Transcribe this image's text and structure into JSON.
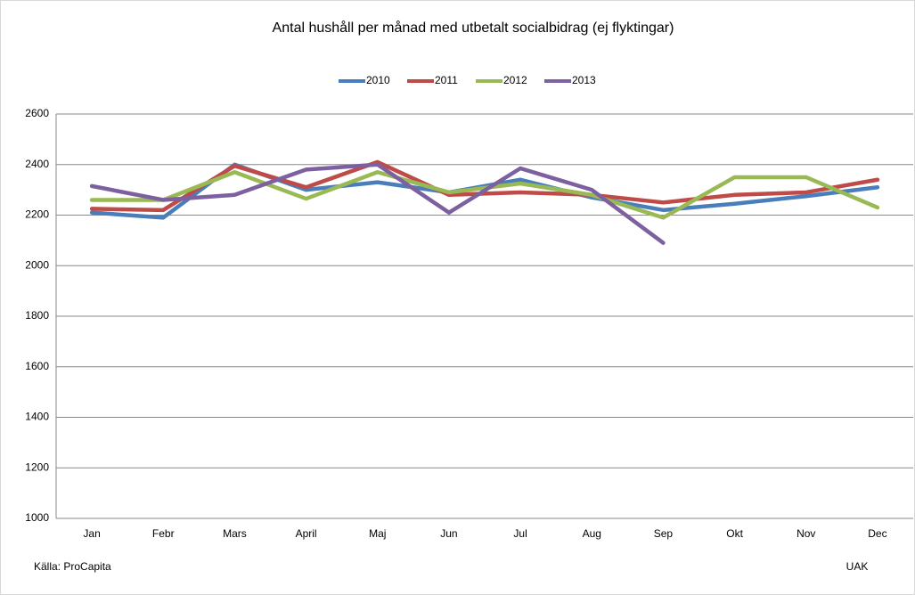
{
  "chart_data": {
    "type": "line",
    "title": "Antal hushåll per månad med utbetalt socialbidrag (ej flyktingar)",
    "categories": [
      "Jan",
      "Febr",
      "Mars",
      "April",
      "Maj",
      "Jun",
      "Jul",
      "Aug",
      "Sep",
      "Okt",
      "Nov",
      "Dec"
    ],
    "series": [
      {
        "name": "2010",
        "color": "#4a7ebb",
        "values": [
          2210,
          2190,
          2400,
          2300,
          2330,
          2290,
          2340,
          2270,
          2220,
          2245,
          2275,
          2310
        ]
      },
      {
        "name": "2011",
        "color": "#be4b48",
        "values": [
          2225,
          2220,
          2395,
          2310,
          2410,
          2280,
          2290,
          2280,
          2250,
          2280,
          2290,
          2340
        ]
      },
      {
        "name": "2012",
        "color": "#98b954",
        "values": [
          2260,
          2260,
          2370,
          2265,
          2370,
          2290,
          2325,
          2280,
          2190,
          2350,
          2350,
          2230
        ]
      },
      {
        "name": "2013",
        "color": "#7d60a0",
        "values": [
          2315,
          2260,
          2280,
          2380,
          2400,
          2210,
          2385,
          2300,
          2090,
          null,
          null,
          null
        ]
      }
    ],
    "ylim": [
      1000,
      2600
    ],
    "yticks": [
      1000,
      1200,
      1400,
      1600,
      1800,
      2000,
      2200,
      2400,
      2600
    ],
    "grid": true,
    "legend": "top",
    "source": "Källa: ProCapita",
    "credit": "UAK"
  }
}
